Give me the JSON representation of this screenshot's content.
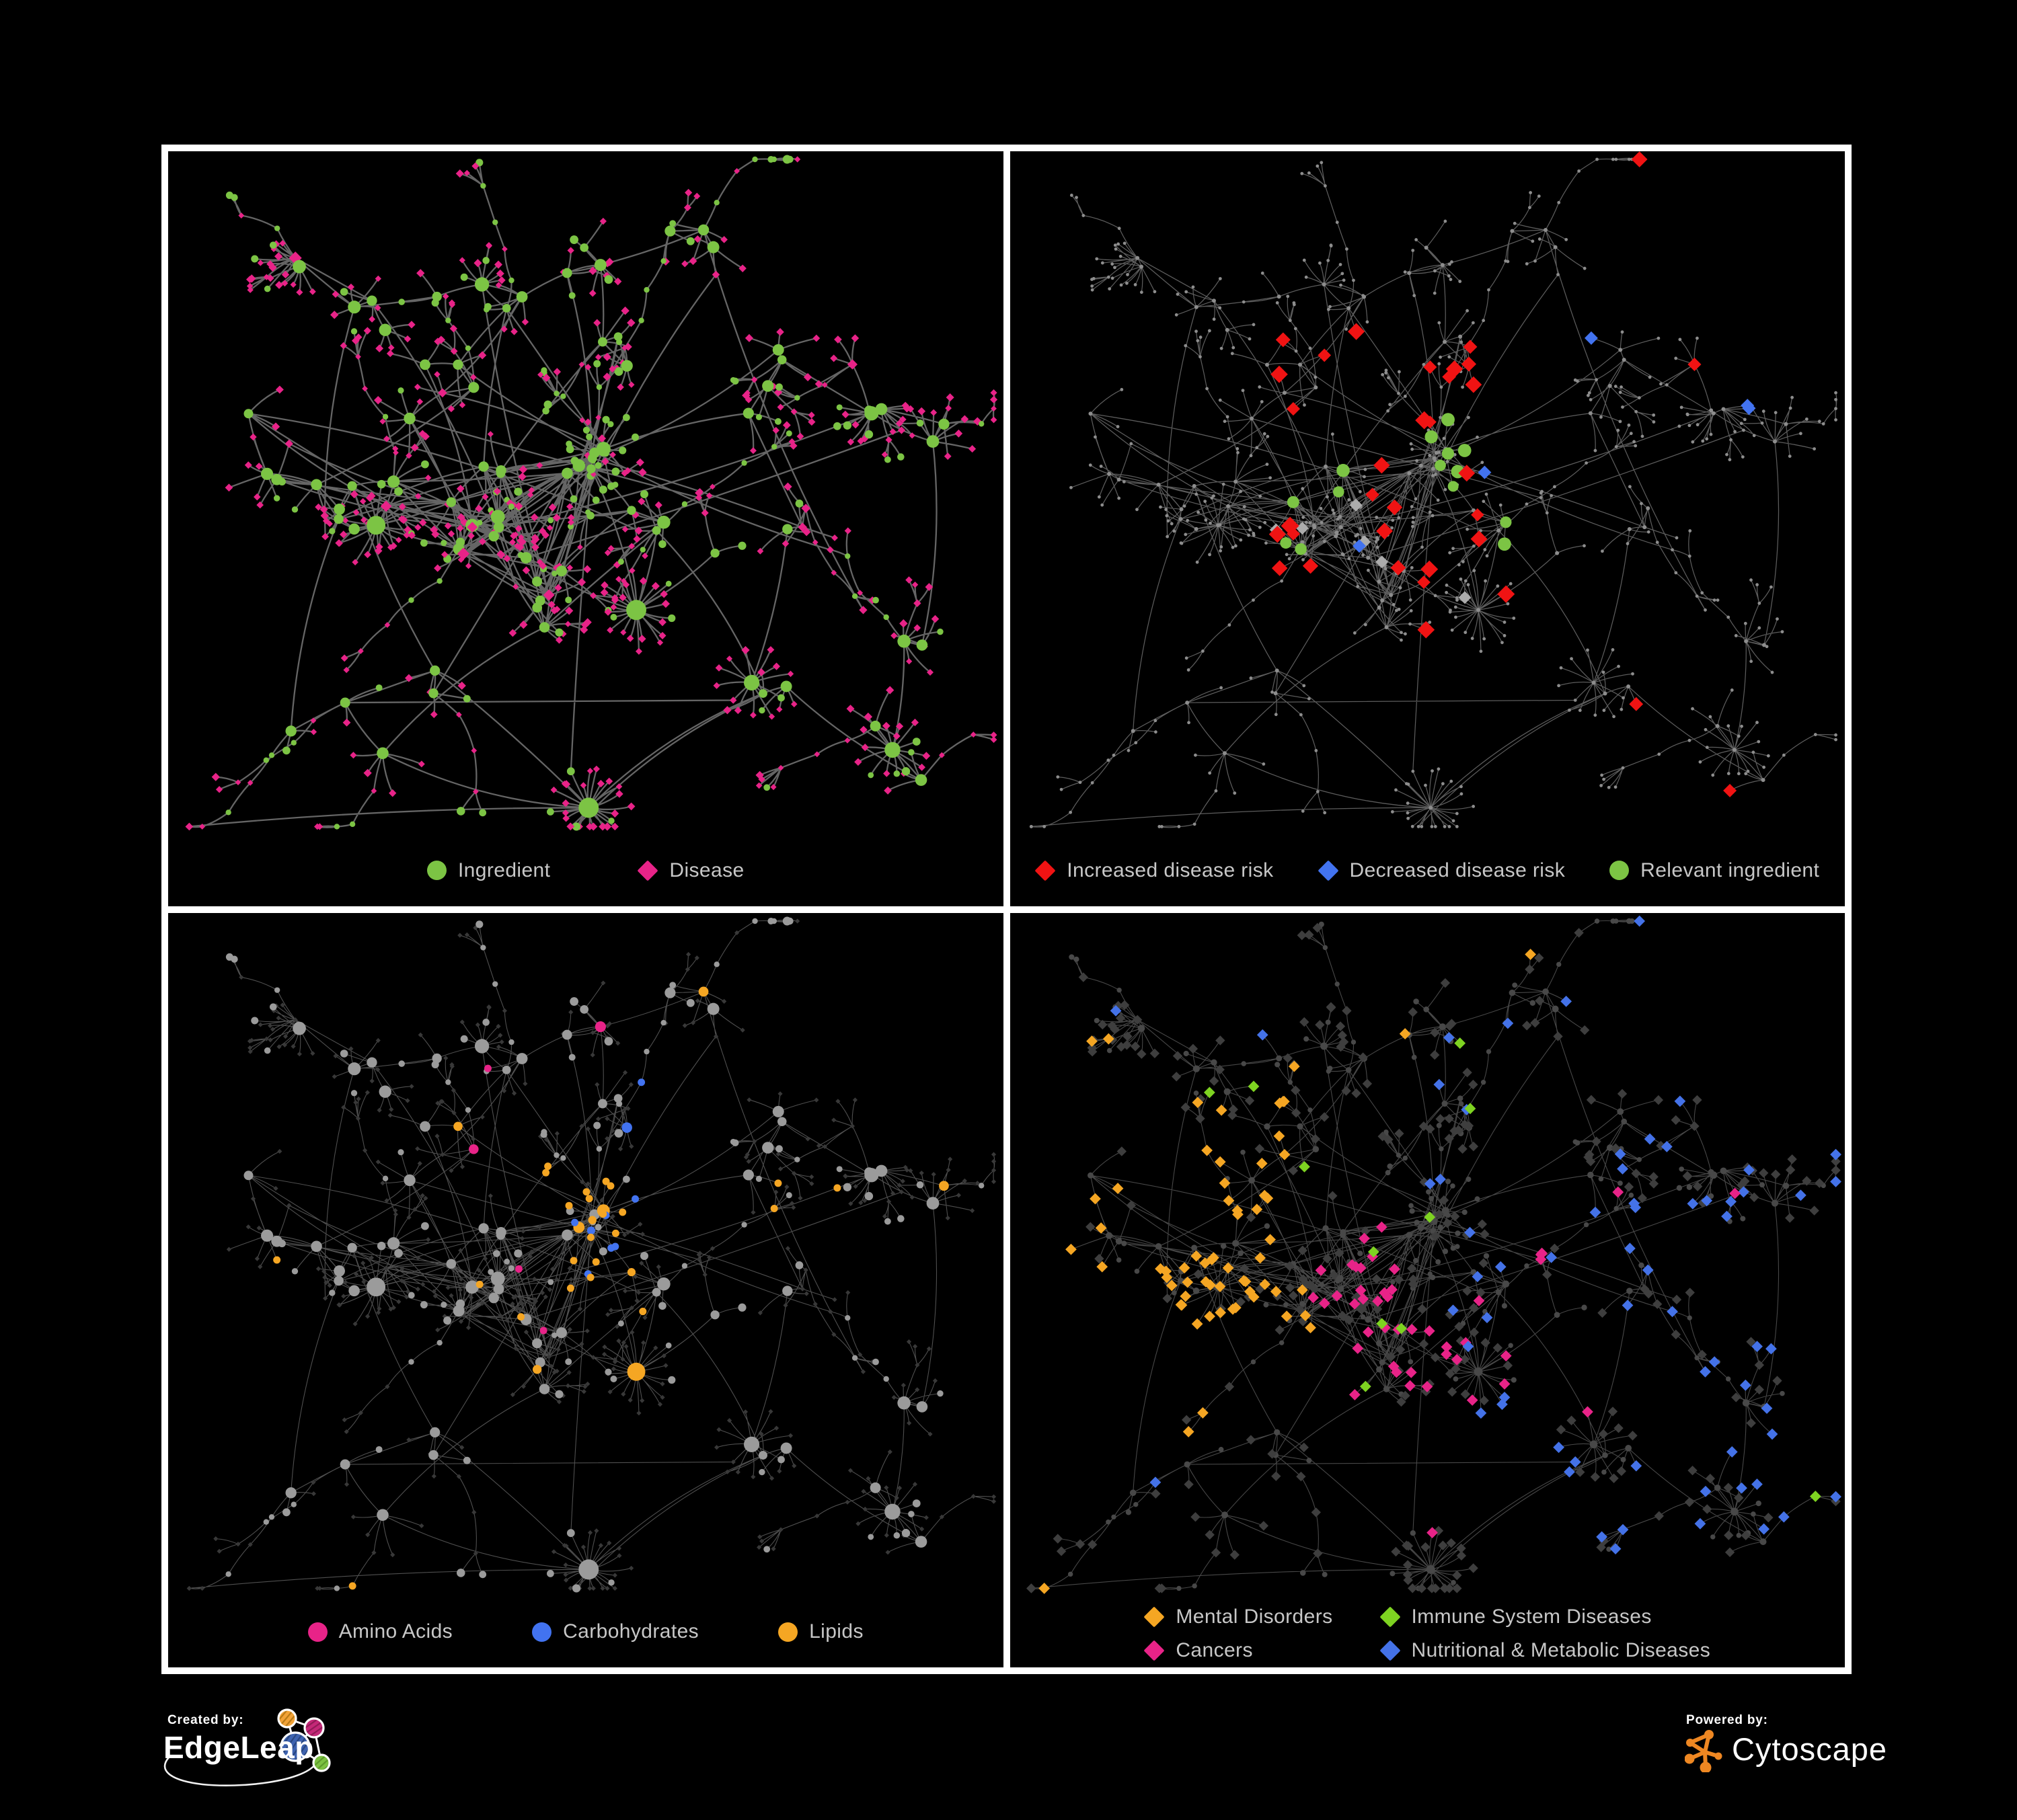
{
  "figure": {
    "background": "#000000",
    "frame_color": "#ffffff"
  },
  "panels": [
    {
      "key": "p1",
      "name": "ingredient-disease-network",
      "legend_rows": [
        [
          {
            "shape": "circle",
            "color": "#7CC444",
            "label": "Ingredient"
          },
          {
            "shape": "diamond",
            "color": "#E82388",
            "label": "Disease"
          }
        ]
      ]
    },
    {
      "key": "p2",
      "name": "disease-risk-network",
      "legend_rows": [
        [
          {
            "shape": "diamond",
            "color": "#F01313",
            "label": "Increased disease risk"
          },
          {
            "shape": "diamond",
            "color": "#4273F0",
            "label": "Decreased disease risk"
          },
          {
            "shape": "circle",
            "color": "#7CC444",
            "label": "Relevant ingredient"
          }
        ]
      ]
    },
    {
      "key": "p3",
      "name": "ingredient-classes-network",
      "legend_rows": [
        [
          {
            "shape": "circle",
            "color": "#E82388",
            "label": "Amino Acids"
          },
          {
            "shape": "circle",
            "color": "#4273F0",
            "label": "Carbohydrates"
          },
          {
            "shape": "circle",
            "color": "#F5A623",
            "label": "Lipids"
          }
        ]
      ]
    },
    {
      "key": "p4",
      "name": "disease-classes-network",
      "legend_rows": [
        [
          {
            "shape": "diamond",
            "color": "#F5A623",
            "label": "Mental Disorders"
          },
          {
            "shape": "diamond",
            "color": "#7ED321",
            "label": "Immune System Diseases"
          }
        ],
        [
          {
            "shape": "diamond",
            "color": "#E82388",
            "label": "Cancers"
          },
          {
            "shape": "diamond",
            "color": "#4472E8",
            "label": "Nutritional & Metabolic Diseases"
          }
        ]
      ]
    }
  ],
  "network": {
    "colors": {
      "green": "#7CC444",
      "pink": "#E82388",
      "red": "#F01313",
      "blue": "#4273F0",
      "silver": "#ACACAC",
      "orange": "#F5A623",
      "immune_green": "#7ED321",
      "nutri_blue": "#4472E8",
      "gray_circle": "#9B9B9B",
      "dark_diamond": "#383838",
      "p4_dark": "#3E3E3E",
      "p4_circle": "#484848",
      "p2_dot": "#8D8D8D"
    },
    "edges": {
      "p1": {
        "color": "#6E6E6E",
        "width": 2.3,
        "opacity": 0.92
      },
      "p2": {
        "color": "#6C6C6C",
        "width": 1.25,
        "opacity": 0.85
      },
      "p3": {
        "color": "#909090",
        "width": 1.1,
        "opacity": 0.55
      },
      "p4": {
        "color": "#8E8E8E",
        "width": 1.1,
        "opacity": 0.5
      }
    }
  },
  "footer": {
    "created_by_label": "Created by:",
    "created_by_brand": "EdgeLeap",
    "powered_by_label": "Powered by:",
    "powered_by_brand": "Cytoscape",
    "edgeleap_colors": {
      "orange": "#F2A338",
      "magenta": "#C42878",
      "blue": "#3E63B0",
      "green": "#7CC242"
    },
    "cytoscape_orange": "#EE8722"
  }
}
